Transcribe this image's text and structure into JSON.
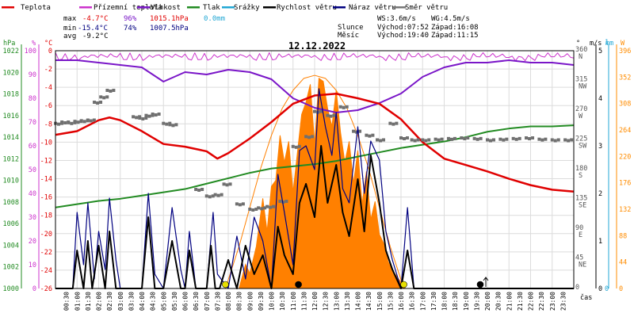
{
  "chart_data": {
    "type": "line",
    "title": "12.12.2022",
    "legend": [
      {
        "label": "Teplota",
        "color": "#e00000"
      },
      {
        "label": "Přízemní teplota",
        "color": "#cc33cc"
      },
      {
        "label": "Vlhkost",
        "color": "#7a16c8"
      },
      {
        "label": "Tlak",
        "color": "#228b22"
      },
      {
        "label": "Srážky",
        "color": "#22a7d4"
      },
      {
        "label": "Rychlost větru",
        "color": "#000000"
      },
      {
        "label": "Náraz větru",
        "color": "#000080"
      },
      {
        "label": "Směr větru",
        "color": "#777777"
      }
    ],
    "stats": {
      "max_label": "max",
      "max_temp": "-4.7°C",
      "max_hum": "96%",
      "max_press": "1015.1hPa",
      "rain": "0.0mm",
      "min_label": "min",
      "min_temp": "-15.4°C",
      "min_hum": "74%",
      "min_press": "1007.5hPa",
      "avg_label": "avg",
      "avg_temp": "-9.2°C"
    },
    "wind_info": {
      "ws": "WS:3.6m/s",
      "wg": "WG:4.5m/s"
    },
    "sun": {
      "label": "Slunce",
      "rise": "Východ:07:52",
      "set": "Západ:16:08"
    },
    "moon": {
      "label": "Měsíc",
      "rise": "Východ:19:40",
      "set": "Západ:11:15"
    },
    "axis_units": {
      "hpa": "hPa",
      "pct": "%",
      "degc": "°C",
      "deg": "°",
      "ms": "m/s",
      "mm": "mm",
      "w": "W",
      "cas": "čas"
    },
    "temp_ticks": [
      0,
      -2,
      -4,
      -6,
      -8,
      -10,
      -12,
      -14,
      -16,
      -18,
      -20,
      -22,
      -24,
      -26
    ],
    "hum_ticks": [
      100,
      90,
      80,
      70,
      60,
      50,
      40,
      30,
      20,
      10,
      0
    ],
    "press_ticks": [
      1022,
      1020,
      1018,
      1016,
      1014,
      1012,
      1010,
      1008,
      1006,
      1004,
      1002,
      1000
    ],
    "dir_ticks": [
      {
        "v": 360,
        "d": "N"
      },
      {
        "v": 315,
        "d": "NW"
      },
      {
        "v": 270,
        "d": "W"
      },
      {
        "v": 225,
        "d": "SW"
      },
      {
        "v": 180,
        "d": "S"
      },
      {
        "v": 135,
        "d": "SE"
      },
      {
        "v": 90,
        "d": "E"
      },
      {
        "v": 45,
        "d": "NE"
      },
      {
        "v": 0,
        "d": ""
      }
    ],
    "ms_ticks": [
      5,
      4,
      3,
      2,
      1,
      0
    ],
    "mm_ticks": [
      1,
      0
    ],
    "w_ticks": [
      396,
      352,
      308,
      264,
      220,
      176,
      132,
      88,
      44,
      0
    ],
    "time_labels": [
      "00:30",
      "01:00",
      "01:30",
      "02:00",
      "02:30",
      "03:00",
      "03:30",
      "04:00",
      "04:30",
      "05:00",
      "05:30",
      "06:00",
      "06:30",
      "07:00",
      "07:30",
      "08:00",
      "08:30",
      "09:00",
      "09:30",
      "10:00",
      "10:30",
      "11:00",
      "11:30",
      "12:00",
      "12:30",
      "13:00",
      "13:30",
      "14:00",
      "14:30",
      "15:00",
      "15:30",
      "16:00",
      "16:30",
      "17:00",
      "17:30",
      "18:00",
      "18:30",
      "19:00",
      "19:30",
      "20:00",
      "20:30",
      "21:00",
      "21:30",
      "22:00",
      "22:30",
      "23:00",
      "23:30"
    ],
    "temperature": {
      "x": [
        0,
        1,
        2,
        2.5,
        3,
        4,
        5,
        6,
        7,
        7.5,
        8,
        9,
        10,
        11,
        12,
        13,
        14,
        15,
        16,
        17,
        18,
        19,
        20,
        21,
        22,
        23,
        24
      ],
      "y": [
        -9.2,
        -8.8,
        -7.6,
        -7.3,
        -7.6,
        -8.8,
        -10.2,
        -10.5,
        -11.0,
        -11.8,
        -11.2,
        -9.6,
        -7.8,
        -5.8,
        -4.9,
        -4.7,
        -5.2,
        -5.8,
        -7.5,
        -10.0,
        -11.8,
        -12.5,
        -13.2,
        -14.0,
        -14.7,
        -15.2,
        -15.4
      ]
    },
    "humidity": {
      "x": [
        0,
        1,
        2,
        3,
        4,
        5,
        6,
        7,
        8,
        9,
        10,
        11,
        12,
        13,
        14,
        15,
        16,
        17,
        18,
        19,
        20,
        21,
        22,
        23,
        24
      ],
      "y": [
        96,
        96,
        95,
        94,
        93,
        87,
        91,
        90,
        92,
        91,
        88,
        80,
        76,
        74,
        75,
        78,
        82,
        89,
        93,
        95,
        95,
        96,
        95,
        95,
        94
      ]
    },
    "pressure": {
      "x": [
        0,
        1,
        2,
        3,
        4,
        5,
        6,
        7,
        8,
        9,
        10,
        11,
        12,
        13,
        14,
        15,
        16,
        17,
        18,
        19,
        20,
        21,
        22,
        23,
        24
      ],
      "y": [
        1007.5,
        1007.8,
        1008.1,
        1008.3,
        1008.6,
        1008.9,
        1009.2,
        1009.7,
        1010.2,
        1010.7,
        1011.1,
        1011.3,
        1011.5,
        1011.8,
        1012.2,
        1012.6,
        1013.0,
        1013.3,
        1013.6,
        1014.0,
        1014.5,
        1014.8,
        1015.0,
        1015.0,
        1015.1
      ]
    },
    "ground_temp_max": 0,
    "wind_direction": {
      "x": [
        0,
        0.3,
        0.6,
        0.9,
        1.2,
        1.5,
        1.8,
        2.1,
        2.4,
        3.6,
        3.9,
        4.2,
        4.5,
        5.0,
        5.3,
        6.5,
        7.0,
        7.4,
        7.8,
        8.4,
        9.0,
        9.4,
        9.8,
        10.4,
        11.0,
        11.6,
        12.0,
        12.6,
        13.2,
        13.8,
        14.4,
        14.9,
        15.5,
        16.0,
        16.5,
        17.0,
        17.6,
        18.2,
        18.8,
        19.4,
        20.0,
        20.6,
        21.2,
        21.8,
        22.4,
        23.0,
        23.6
      ],
      "y": [
        250,
        252,
        251,
        253,
        254,
        255,
        282,
        290,
        300,
        260,
        258,
        262,
        264,
        250,
        248,
        150,
        140,
        142,
        158,
        128,
        120,
        122,
        124,
        132,
        215,
        230,
        268,
        262,
        275,
        238,
        232,
        225,
        250,
        228,
        225,
        225,
        226,
        227,
        228,
        227,
        225,
        226,
        227,
        228,
        226,
        225,
        225
      ]
    },
    "wind_speed": {
      "x": [
        0,
        0.8,
        1.0,
        1.3,
        1.5,
        1.7,
        2.0,
        2.3,
        2.5,
        2.8,
        3.0,
        3.2,
        4.0,
        4.3,
        4.6,
        5.0,
        5.4,
        5.8,
        6.0,
        6.2,
        6.5,
        7.0,
        7.2,
        7.4,
        7.6,
        8.0,
        8.4,
        8.8,
        9.2,
        9.6,
        10.0,
        10.3,
        10.6,
        11.0,
        11.3,
        11.6,
        12.0,
        12.3,
        12.6,
        13.0,
        13.3,
        13.6,
        14.0,
        14.3,
        14.6,
        15.0,
        15.3,
        15.6,
        16.0,
        16.3,
        16.6,
        17.0,
        24
      ],
      "y": [
        0,
        0,
        0.8,
        0,
        1.0,
        0,
        0.9,
        0,
        1.2,
        0,
        0,
        0,
        0,
        1.5,
        0,
        0,
        1.0,
        0,
        0,
        0.8,
        0,
        0,
        0.9,
        0,
        0,
        0.6,
        0,
        0.9,
        0.3,
        0.7,
        0,
        1.3,
        0.7,
        0.3,
        1.8,
        2.2,
        1.5,
        3.0,
        1.8,
        2.6,
        1.6,
        1.1,
        2.3,
        1.2,
        2.8,
        1.8,
        0.8,
        0.4,
        0,
        0.8,
        0,
        0,
        0
      ]
    },
    "wind_gust": {
      "x": [
        0,
        0.8,
        1.0,
        1.3,
        1.5,
        1.8,
        2.0,
        2.3,
        2.5,
        2.8,
        3.0,
        4.0,
        4.3,
        4.6,
        5.0,
        5.4,
        5.8,
        6.0,
        6.2,
        6.5,
        7.0,
        7.3,
        7.5,
        8.0,
        8.4,
        8.8,
        9.2,
        9.6,
        10.0,
        10.3,
        10.6,
        11.0,
        11.3,
        11.6,
        12.0,
        12.2,
        12.5,
        12.8,
        13.0,
        13.3,
        13.6,
        14.0,
        14.3,
        14.6,
        15.0,
        15.3,
        15.6,
        16.0,
        16.3,
        16.6,
        17.0,
        24
      ],
      "y": [
        0,
        0,
        1.6,
        0.5,
        1.8,
        0.2,
        1.2,
        0.4,
        1.9,
        0.6,
        0,
        0,
        2.0,
        0.3,
        0,
        1.7,
        0.4,
        0,
        1.2,
        0,
        0,
        1.6,
        0.3,
        0,
        1.1,
        0.2,
        1.5,
        1.0,
        0,
        2.4,
        1.6,
        0.5,
        2.9,
        3.0,
        2.5,
        4.2,
        3.4,
        2.8,
        3.7,
        2.1,
        1.8,
        3.4,
        2.0,
        3.1,
        2.7,
        1.2,
        0.6,
        0,
        1.7,
        0,
        0,
        0
      ]
    },
    "solar_theoretical": {
      "x": [
        7.87,
        8.5,
        9.0,
        9.5,
        10.0,
        10.5,
        11.0,
        11.5,
        12.0,
        12.5,
        13.0,
        13.5,
        14.0,
        14.5,
        15.0,
        15.5,
        16.13
      ],
      "y": [
        0,
        70,
        135,
        200,
        255,
        300,
        330,
        350,
        355,
        350,
        330,
        300,
        255,
        200,
        135,
        70,
        0
      ]
    },
    "solar_measured": {
      "x": [
        8.5,
        8.8,
        9.0,
        9.3,
        9.6,
        9.8,
        10.0,
        10.2,
        10.4,
        10.6,
        10.8,
        11.0,
        11.2,
        11.4,
        11.6,
        11.8,
        12.0,
        12.2,
        12.4,
        12.6,
        12.8,
        13.0,
        13.2,
        13.4,
        13.6,
        13.8,
        14.0,
        14.2,
        14.4,
        14.6,
        14.8,
        15.0,
        15.2,
        15.4,
        15.6,
        15.8,
        16.0,
        16.2
      ],
      "y": [
        0,
        40,
        25,
        70,
        150,
        95,
        170,
        180,
        255,
        210,
        245,
        160,
        225,
        290,
        310,
        340,
        240,
        350,
        345,
        300,
        270,
        330,
        260,
        210,
        245,
        175,
        230,
        140,
        195,
        115,
        145,
        90,
        75,
        45,
        30,
        20,
        10,
        0
      ]
    },
    "events": [
      {
        "t": 7.87,
        "kind": "sunrise",
        "color": "#e8e000"
      },
      {
        "t": 11.25,
        "kind": "moonset",
        "color": "#000000"
      },
      {
        "t": 16.13,
        "kind": "sunset",
        "color": "#e8e000"
      },
      {
        "t": 19.67,
        "kind": "moonrise",
        "color": "#000000"
      }
    ]
  }
}
